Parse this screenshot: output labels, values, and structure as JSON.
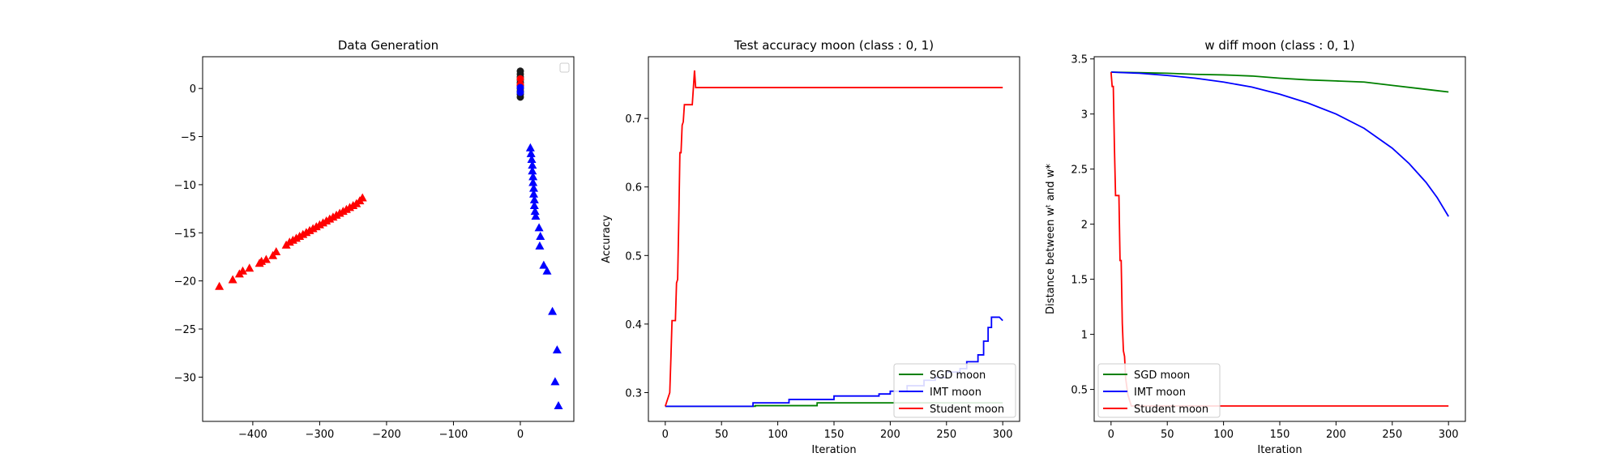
{
  "chart_data": [
    {
      "type": "scatter",
      "title": "Data Generation",
      "xlabel": "",
      "ylabel": "",
      "xlim": [
        -475,
        80
      ],
      "ylim": [
        -34.6,
        3.3
      ],
      "xticks": [
        -400,
        -300,
        -200,
        -100,
        0
      ],
      "yticks": [
        0,
        -5,
        -10,
        -15,
        -20,
        -25,
        -30
      ],
      "legend": "top-right (empty)",
      "grid": false,
      "series": [
        {
          "marker": "triangle",
          "color": "#ff0000",
          "points": [
            [
              -450,
              -20.6
            ],
            [
              -430,
              -19.9
            ],
            [
              -420,
              -19.3
            ],
            [
              -415,
              -19.0
            ],
            [
              -405,
              -18.7
            ],
            [
              -390,
              -18.2
            ],
            [
              -387,
              -18.0
            ],
            [
              -380,
              -17.8
            ],
            [
              -370,
              -17.4
            ],
            [
              -365,
              -17.0
            ],
            [
              -350,
              -16.3
            ],
            [
              -345,
              -16.0
            ],
            [
              -340,
              -15.8
            ],
            [
              -335,
              -15.6
            ],
            [
              -330,
              -15.4
            ],
            [
              -325,
              -15.2
            ],
            [
              -320,
              -15.0
            ],
            [
              -315,
              -14.8
            ],
            [
              -310,
              -14.6
            ],
            [
              -305,
              -14.4
            ],
            [
              -300,
              -14.2
            ],
            [
              -295,
              -14.0
            ],
            [
              -290,
              -13.8
            ],
            [
              -285,
              -13.6
            ],
            [
              -280,
              -13.4
            ],
            [
              -275,
              -13.2
            ],
            [
              -270,
              -13.0
            ],
            [
              -265,
              -12.8
            ],
            [
              -260,
              -12.6
            ],
            [
              -255,
              -12.4
            ],
            [
              -250,
              -12.2
            ],
            [
              -245,
              -12.0
            ],
            [
              -240,
              -11.7
            ],
            [
              -236,
              -11.4
            ]
          ]
        },
        {
          "marker": "triangle",
          "color": "#0000ff",
          "points": [
            [
              15,
              -6.2
            ],
            [
              16,
              -6.8
            ],
            [
              17,
              -7.4
            ],
            [
              18,
              -8.0
            ],
            [
              18,
              -8.6
            ],
            [
              19,
              -9.2
            ],
            [
              19,
              -9.8
            ],
            [
              20,
              -10.4
            ],
            [
              20,
              -11.0
            ],
            [
              21,
              -11.6
            ],
            [
              21,
              -12.2
            ],
            [
              22,
              -12.8
            ],
            [
              23,
              -13.3
            ],
            [
              28,
              -14.5
            ],
            [
              30,
              -15.4
            ],
            [
              29,
              -16.4
            ],
            [
              35,
              -18.4
            ],
            [
              40,
              -19.0
            ],
            [
              48,
              -23.2
            ],
            [
              55,
              -27.2
            ],
            [
              52,
              -30.5
            ],
            [
              57,
              -33.0
            ]
          ]
        },
        {
          "marker": "circle",
          "color": "#1a1a1a",
          "points": [
            [
              0,
              1.8
            ],
            [
              0,
              1.5
            ],
            [
              0,
              1.2
            ],
            [
              0,
              0.9
            ],
            [
              0,
              0.6
            ],
            [
              0,
              0.3
            ],
            [
              0,
              0.0
            ],
            [
              0,
              -0.3
            ],
            [
              0,
              -0.6
            ],
            [
              0,
              -0.9
            ]
          ]
        },
        {
          "marker": "circle",
          "color": "#ff0000",
          "points": [
            [
              0,
              1.0
            ],
            [
              0,
              0.4
            ]
          ]
        },
        {
          "marker": "circle",
          "color": "#0000ff",
          "points": [
            [
              0,
              0.1
            ],
            [
              0,
              -0.4
            ]
          ]
        }
      ]
    },
    {
      "type": "line",
      "title": "Test accuracy moon (class : 0, 1)",
      "xlabel": "Iteration",
      "ylabel": "Accuracy",
      "xlim": [
        -15,
        315
      ],
      "ylim": [
        0.258,
        0.79
      ],
      "xticks": [
        0,
        50,
        100,
        150,
        200,
        250,
        300
      ],
      "yticks": [
        0.3,
        0.4,
        0.5,
        0.6,
        0.7
      ],
      "legend": "bottom-right",
      "grid": false,
      "series": [
        {
          "name": "SGD moon",
          "color": "#008000",
          "points": [
            [
              0,
              0.28
            ],
            [
              80,
              0.28
            ],
            [
              80,
              0.281
            ],
            [
              135,
              0.281
            ],
            [
              135,
              0.285
            ],
            [
              300,
              0.285
            ]
          ]
        },
        {
          "name": "IMT moon",
          "color": "#0000ff",
          "points": [
            [
              0,
              0.28
            ],
            [
              78,
              0.28
            ],
            [
              78,
              0.285
            ],
            [
              110,
              0.285
            ],
            [
              110,
              0.29
            ],
            [
              150,
              0.29
            ],
            [
              150,
              0.295
            ],
            [
              175,
              0.295
            ],
            [
              190,
              0.295
            ],
            [
              190,
              0.298
            ],
            [
              200,
              0.298
            ],
            [
              200,
              0.302
            ],
            [
              215,
              0.302
            ],
            [
              215,
              0.31
            ],
            [
              230,
              0.31
            ],
            [
              230,
              0.318
            ],
            [
              240,
              0.318
            ],
            [
              240,
              0.322
            ],
            [
              250,
              0.322
            ],
            [
              250,
              0.33
            ],
            [
              262,
              0.33
            ],
            [
              262,
              0.335
            ],
            [
              268,
              0.335
            ],
            [
              268,
              0.345
            ],
            [
              278,
              0.345
            ],
            [
              278,
              0.355
            ],
            [
              283,
              0.355
            ],
            [
              283,
              0.375
            ],
            [
              287,
              0.375
            ],
            [
              287,
              0.395
            ],
            [
              290,
              0.395
            ],
            [
              290,
              0.41
            ],
            [
              297,
              0.41
            ],
            [
              300,
              0.405
            ]
          ]
        },
        {
          "name": "Student moon",
          "color": "#ff0000",
          "points": [
            [
              0,
              0.28
            ],
            [
              2,
              0.29
            ],
            [
              4,
              0.3
            ],
            [
              5,
              0.35
            ],
            [
              6,
              0.405
            ],
            [
              9,
              0.405
            ],
            [
              10,
              0.46
            ],
            [
              11,
              0.465
            ],
            [
              12,
              0.55
            ],
            [
              13,
              0.65
            ],
            [
              14,
              0.65
            ],
            [
              15,
              0.69
            ],
            [
              16,
              0.695
            ],
            [
              17,
              0.72
            ],
            [
              24,
              0.72
            ],
            [
              25,
              0.745
            ],
            [
              26,
              0.77
            ],
            [
              27,
              0.745
            ],
            [
              300,
              0.745
            ]
          ]
        }
      ]
    },
    {
      "type": "line",
      "title": "w diff moon (class : 0, 1)",
      "xlabel": "Iteration",
      "ylabel": "Distance between wᵗ and w*",
      "xlim": [
        -15,
        315
      ],
      "ylim": [
        0.21,
        3.52
      ],
      "xticks": [
        0,
        50,
        100,
        150,
        200,
        250,
        300
      ],
      "yticks": [
        0.5,
        1.0,
        1.5,
        2.0,
        2.5,
        3.0,
        3.5
      ],
      "legend": "bottom-left",
      "grid": false,
      "series": [
        {
          "name": "SGD moon",
          "color": "#008000",
          "points": [
            [
              0,
              3.38
            ],
            [
              25,
              3.375
            ],
            [
              50,
              3.37
            ],
            [
              75,
              3.36
            ],
            [
              100,
              3.355
            ],
            [
              125,
              3.345
            ],
            [
              150,
              3.325
            ],
            [
              175,
              3.31
            ],
            [
              200,
              3.3
            ],
            [
              225,
              3.29
            ],
            [
              250,
              3.26
            ],
            [
              275,
              3.23
            ],
            [
              300,
              3.2
            ]
          ]
        },
        {
          "name": "IMT moon",
          "color": "#0000ff",
          "points": [
            [
              0,
              3.38
            ],
            [
              25,
              3.37
            ],
            [
              50,
              3.35
            ],
            [
              75,
              3.325
            ],
            [
              100,
              3.29
            ],
            [
              125,
              3.245
            ],
            [
              150,
              3.18
            ],
            [
              175,
              3.1
            ],
            [
              200,
              3.0
            ],
            [
              225,
              2.87
            ],
            [
              250,
              2.69
            ],
            [
              265,
              2.55
            ],
            [
              280,
              2.38
            ],
            [
              290,
              2.24
            ],
            [
              300,
              2.07
            ]
          ]
        },
        {
          "name": "Student moon",
          "color": "#ff0000",
          "points": [
            [
              0,
              3.38
            ],
            [
              1,
              3.25
            ],
            [
              2,
              3.25
            ],
            [
              3,
              2.7
            ],
            [
              4,
              2.26
            ],
            [
              7,
              2.26
            ],
            [
              8,
              1.67
            ],
            [
              9,
              1.67
            ],
            [
              10,
              1.1
            ],
            [
              11,
              0.85
            ],
            [
              12,
              0.8
            ],
            [
              13,
              0.6
            ],
            [
              15,
              0.45
            ],
            [
              18,
              0.35
            ],
            [
              300,
              0.35
            ]
          ]
        }
      ]
    }
  ]
}
